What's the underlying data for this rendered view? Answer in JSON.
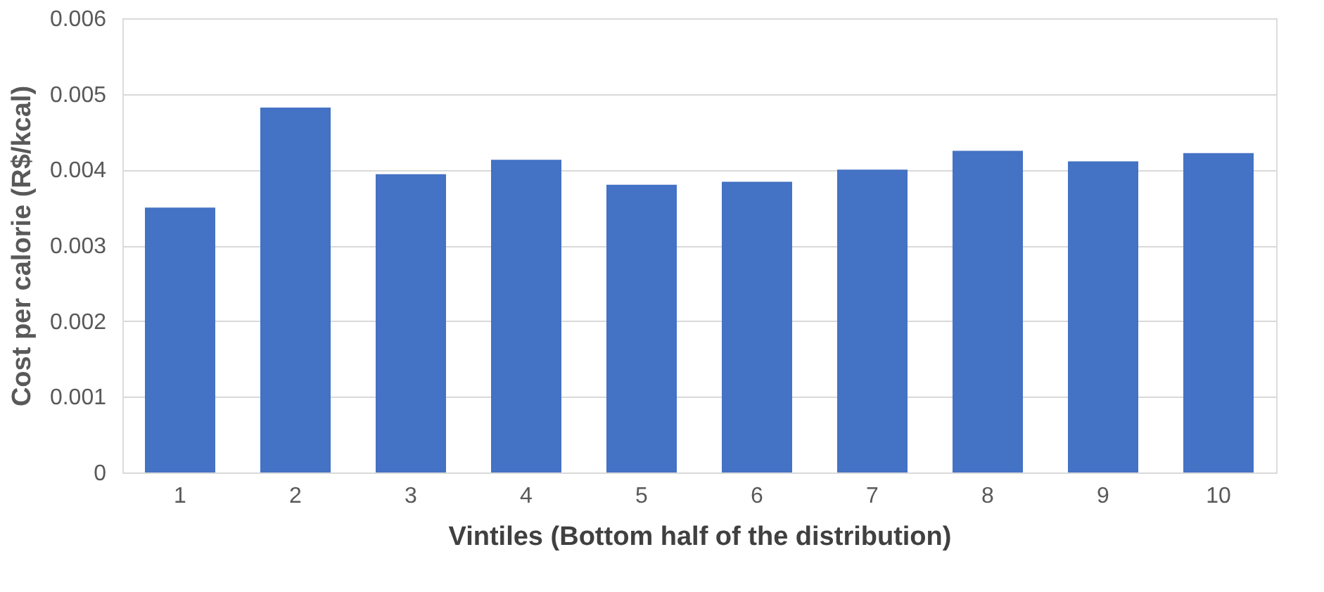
{
  "chart_data": {
    "type": "bar",
    "xlabel": "Vintiles (Bottom half of the distribution)",
    "ylabel": "Cost per calorie (R$/kcal)",
    "categories": [
      "1",
      "2",
      "3",
      "4",
      "5",
      "6",
      "7",
      "8",
      "9",
      "10"
    ],
    "values": [
      0.0035,
      0.00482,
      0.00394,
      0.00413,
      0.0038,
      0.00384,
      0.004,
      0.00425,
      0.00411,
      0.00422
    ],
    "color": "#4472c4",
    "ylim": [
      0,
      0.006
    ],
    "yticks": [
      0,
      {
        "value": 0.001,
        "label": "0.001"
      },
      {
        "value": 0.002,
        "label": "0.002"
      },
      {
        "value": 0.003,
        "label": "0.003"
      },
      {
        "value": 0.004,
        "label": "0.004"
      },
      {
        "value": 0.005,
        "label": "0.005"
      },
      {
        "value": 0.006,
        "label": "0.006"
      }
    ],
    "grid": "y"
  }
}
